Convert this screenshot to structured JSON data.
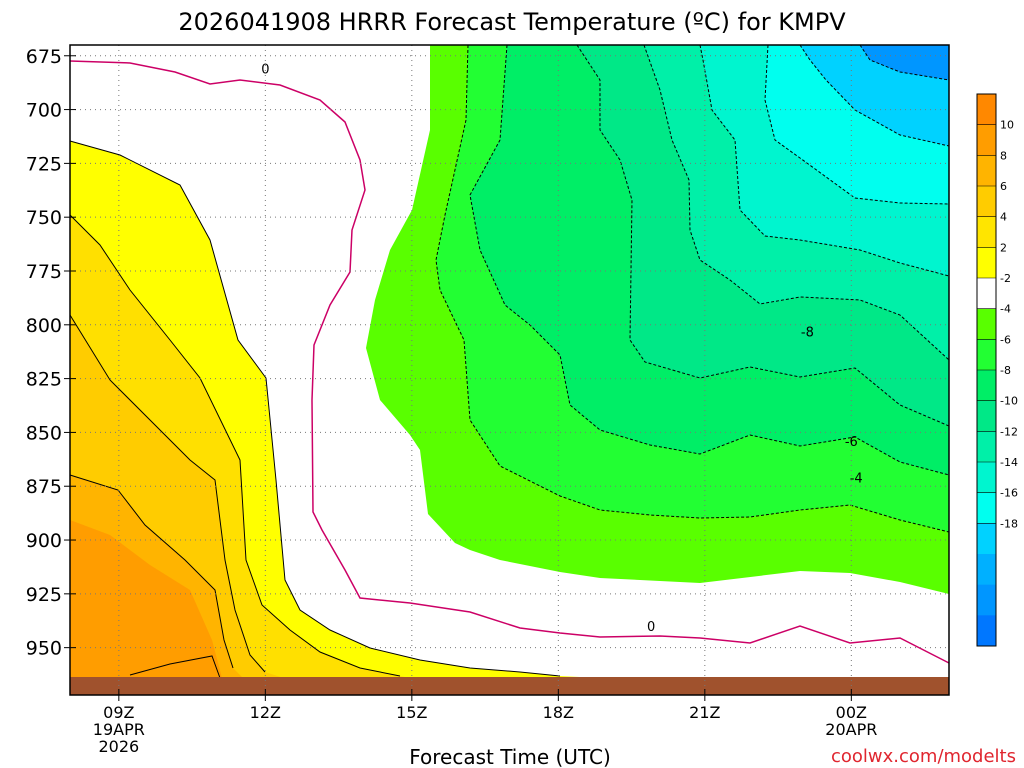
{
  "chart_data": {
    "type": "heatmap",
    "title": "2026041908 HRRR Forecast Temperature (ºC) for KMPV",
    "xlabel": "Forecast Time (UTC)",
    "ylabel": "",
    "credit": "coolwx.com/modelts",
    "x_ticks": [
      {
        "value": 9,
        "lines": [
          "09Z",
          "19APR",
          "2026"
        ]
      },
      {
        "value": 12,
        "lines": [
          "12Z"
        ]
      },
      {
        "value": 15,
        "lines": [
          "15Z"
        ]
      },
      {
        "value": 18,
        "lines": [
          "18Z"
        ]
      },
      {
        "value": 21,
        "lines": [
          "21Z"
        ]
      },
      {
        "value": 24,
        "lines": [
          "00Z",
          "20APR"
        ]
      }
    ],
    "xlim": [
      8,
      26
    ],
    "y_ticks": [
      675,
      700,
      725,
      750,
      775,
      800,
      825,
      850,
      875,
      900,
      925,
      950
    ],
    "ylim": [
      670,
      972
    ],
    "y_axis": "pressure (hPa), inverted",
    "grid": true,
    "colorbar": {
      "position": "right",
      "tick_labels": [
        "10",
        "8",
        "6",
        "4",
        "2",
        "-2",
        "-4",
        "-6",
        "-8",
        "-10",
        "-12",
        "-14",
        "-16",
        "-18"
      ],
      "colors": [
        "#ff8800",
        "#ff9d00",
        "#ffb400",
        "#ffcc00",
        "#ffe500",
        "#ffff00",
        "#ffffff",
        "#59ff00",
        "#22ff33",
        "#00ee66",
        "#00e887",
        "#00f0a8",
        "#00f5cf",
        "#00ffef",
        "#00d2ff",
        "#00b0ff",
        "#0096ff",
        "#0077ff"
      ]
    },
    "contour_labels": [
      {
        "text": "0",
        "x": 12.0,
        "y": 681
      },
      {
        "text": "0",
        "x": 19.9,
        "y": 940
      },
      {
        "text": "-8",
        "x": 23.1,
        "y": 803
      },
      {
        "text": "-6",
        "x": 24.0,
        "y": 854
      },
      {
        "text": "-4",
        "x": 24.1,
        "y": 871
      }
    ],
    "terrain_color": "#a0522d"
  }
}
